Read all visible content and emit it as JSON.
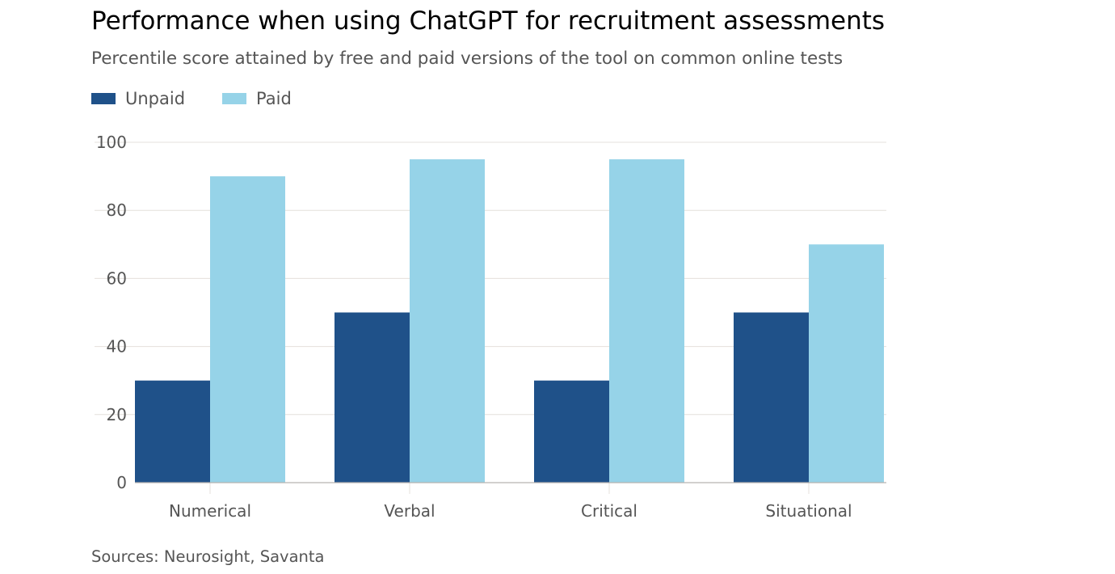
{
  "title": "Performance when using ChatGPT for recruitment assessments",
  "subtitle": "Percentile score attained by free and paid versions of the tool on common online tests",
  "source": "Sources: Neurosight, Savanta",
  "colors": {
    "unpaid": "#1f5189",
    "paid": "#96d3e8",
    "grid": "#e4e0dc",
    "axis": "#b8b4b0"
  },
  "chart_data": {
    "type": "bar",
    "title": "Performance when using ChatGPT for recruitment assessments",
    "subtitle": "Percentile score attained by free and paid versions of the tool on common online tests",
    "xlabel": "",
    "ylabel": "",
    "categories": [
      "Numerical",
      "Verbal",
      "Critical",
      "Situational"
    ],
    "series": [
      {
        "name": "Unpaid",
        "values": [
          30,
          50,
          30,
          50
        ]
      },
      {
        "name": "Paid",
        "values": [
          90,
          95,
          95,
          70
        ]
      }
    ],
    "ylim": [
      0,
      100
    ],
    "yticks": [
      "0",
      "20",
      "40",
      "60",
      "80",
      "100"
    ],
    "grid": true,
    "legend": "top-left"
  }
}
